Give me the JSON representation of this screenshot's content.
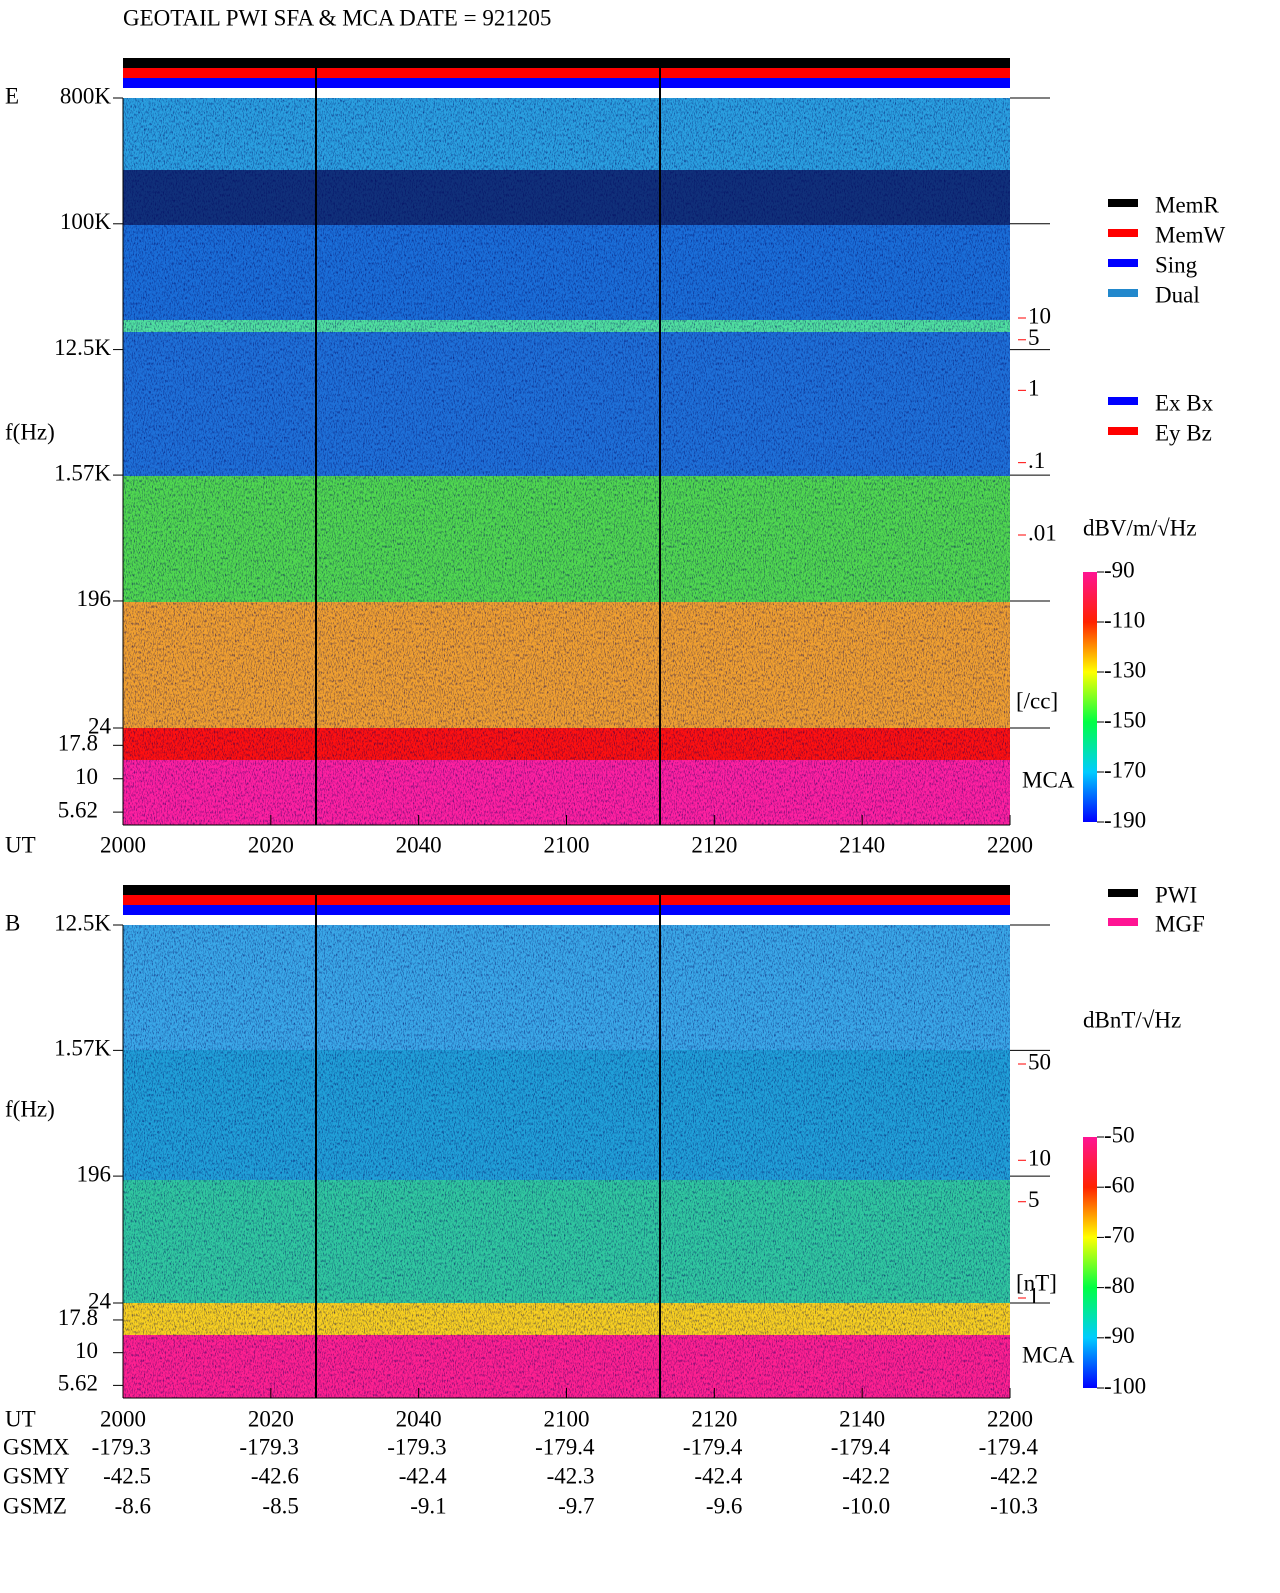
{
  "title": "GEOTAIL  PWI SFA & MCA   DATE = 921205",
  "chart_data": [
    {
      "type": "spectrogram",
      "panel_label": "E",
      "y_label": "f(Hz)",
      "x_label": "UT",
      "categories": [
        "2000",
        "2020",
        "2040",
        "2100",
        "2120",
        "2140",
        "2200"
      ],
      "yscale": "log",
      "ylim": [
        24,
        800000
      ],
      "yticks": [
        {
          "value": 800000,
          "label": "800K"
        },
        {
          "value": 100000,
          "label": "100K"
        },
        {
          "value": 12500,
          "label": "12.5K"
        },
        {
          "value": 1570,
          "label": "1.57K"
        },
        196,
        24
      ],
      "mca_label": "MCA",
      "mca_ylim": [
        4.5,
        24
      ],
      "mca_yticks": [
        17.8,
        10,
        5.62
      ],
      "y2_label": "[/cc]",
      "y2lim": [
        0.01,
        10
      ],
      "y2ticks": [
        10,
        5,
        1,
        {
          "value": 0.1,
          "label": ".1"
        },
        {
          "value": 0.01,
          "label": ".01"
        }
      ],
      "y2_color": "#ff0000",
      "colorbar_label": "dBV/m/√Hz",
      "clim": [
        -190,
        -90
      ],
      "cticks": [
        -90,
        -110,
        -130,
        -150,
        -170,
        -190
      ],
      "legend": [
        {
          "name": "MemR",
          "color": "#000000"
        },
        {
          "name": "MemW",
          "color": "#ff0000"
        },
        {
          "name": "Sing",
          "color": "#0000ff"
        },
        {
          "name": "Dual",
          "color": "#2288cc"
        },
        {
          "name": "Ex Bx",
          "color": "#0000ff"
        },
        {
          "name": "Ey Bz",
          "color": "#ff0000"
        }
      ]
    },
    {
      "type": "spectrogram",
      "panel_label": "B",
      "y_label": "f(Hz)",
      "x_label": "UT",
      "categories": [
        "2000",
        "2020",
        "2040",
        "2100",
        "2120",
        "2140",
        "2200"
      ],
      "yscale": "log",
      "ylim": [
        24,
        12500
      ],
      "yticks": [
        {
          "value": 12500,
          "label": "12.5K"
        },
        {
          "value": 1570,
          "label": "1.57K"
        },
        196,
        24
      ],
      "mca_label": "MCA",
      "mca_ylim": [
        4.5,
        24
      ],
      "mca_yticks": [
        17.8,
        10,
        5.62
      ],
      "y2_label": "[nT]",
      "y2lim": [
        1,
        50
      ],
      "y2ticks": [
        50,
        10,
        5,
        1
      ],
      "y2_color": "#ff0000",
      "colorbar_label": "dBnT/√Hz",
      "clim": [
        -100,
        -50
      ],
      "cticks": [
        -50,
        -60,
        -70,
        -80,
        -90,
        -100
      ],
      "legend": [
        {
          "name": "PWI",
          "color": "#000000"
        },
        {
          "name": "MGF",
          "color": "#ff1493"
        }
      ]
    }
  ],
  "orbit": {
    "rows": [
      {
        "label": "GSMX",
        "values": [
          "-179.3",
          "-179.3",
          "-179.3",
          "-179.4",
          "-179.4",
          "-179.4",
          "-179.4"
        ]
      },
      {
        "label": "GSMY",
        "values": [
          "-42.5",
          "-42.6",
          "-42.4",
          "-42.3",
          "-42.4",
          "-42.2",
          "-42.2"
        ]
      },
      {
        "label": "GSMZ",
        "values": [
          "-8.6",
          "-8.5",
          "-9.1",
          "-9.7",
          "-9.6",
          "-10.0",
          "-10.3"
        ]
      }
    ]
  }
}
